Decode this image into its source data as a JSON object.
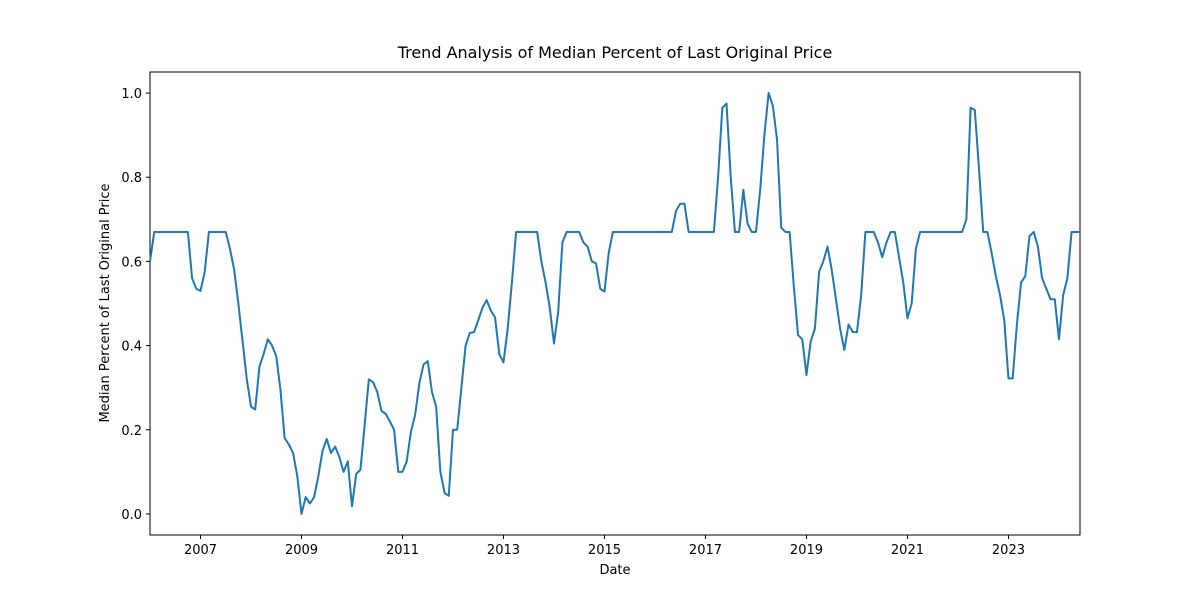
{
  "chart_data": {
    "type": "line",
    "title": "Trend Analysis of Median Percent of Last Original Price",
    "x_label": "Date",
    "y_label": "Median Percent of Last Original Price",
    "x": [
      "2006-01",
      "2006-02",
      "2006-03",
      "2006-04",
      "2006-05",
      "2006-06",
      "2006-07",
      "2006-08",
      "2006-09",
      "2006-10",
      "2006-11",
      "2006-12",
      "2007-01",
      "2007-02",
      "2007-03",
      "2007-04",
      "2007-05",
      "2007-06",
      "2007-07",
      "2007-08",
      "2007-09",
      "2007-10",
      "2007-11",
      "2007-12",
      "2008-01",
      "2008-02",
      "2008-03",
      "2008-04",
      "2008-05",
      "2008-06",
      "2008-07",
      "2008-08",
      "2008-09",
      "2008-10",
      "2008-11",
      "2008-12",
      "2009-01",
      "2009-02",
      "2009-03",
      "2009-04",
      "2009-05",
      "2009-06",
      "2009-07",
      "2009-08",
      "2009-09",
      "2009-10",
      "2009-11",
      "2009-12",
      "2010-01",
      "2010-02",
      "2010-03",
      "2010-04",
      "2010-05",
      "2010-06",
      "2010-07",
      "2010-08",
      "2010-09",
      "2010-10",
      "2010-11",
      "2010-12",
      "2011-01",
      "2011-02",
      "2011-03",
      "2011-04",
      "2011-05",
      "2011-06",
      "2011-07",
      "2011-08",
      "2011-09",
      "2011-10",
      "2011-11",
      "2011-12",
      "2012-01",
      "2012-02",
      "2012-03",
      "2012-04",
      "2012-05",
      "2012-06",
      "2012-07",
      "2012-08",
      "2012-09",
      "2012-10",
      "2012-11",
      "2012-12",
      "2013-01",
      "2013-02",
      "2013-03",
      "2013-04",
      "2013-05",
      "2013-06",
      "2013-07",
      "2013-08",
      "2013-09",
      "2013-10",
      "2013-11",
      "2013-12",
      "2014-01",
      "2014-02",
      "2014-03",
      "2014-04",
      "2014-05",
      "2014-06",
      "2014-07",
      "2014-08",
      "2014-09",
      "2014-10",
      "2014-11",
      "2014-12",
      "2015-01",
      "2015-02",
      "2015-03",
      "2015-04",
      "2015-05",
      "2015-06",
      "2015-07",
      "2015-08",
      "2015-09",
      "2015-10",
      "2015-11",
      "2015-12",
      "2016-01",
      "2016-02",
      "2016-03",
      "2016-04",
      "2016-05",
      "2016-06",
      "2016-07",
      "2016-08",
      "2016-09",
      "2016-10",
      "2016-11",
      "2016-12",
      "2017-01",
      "2017-02",
      "2017-03",
      "2017-04",
      "2017-05",
      "2017-06",
      "2017-07",
      "2017-08",
      "2017-09",
      "2017-10",
      "2017-11",
      "2017-12",
      "2018-01",
      "2018-02",
      "2018-03",
      "2018-04",
      "2018-05",
      "2018-06",
      "2018-07",
      "2018-08",
      "2018-09",
      "2018-10",
      "2018-11",
      "2018-12",
      "2019-01",
      "2019-02",
      "2019-03",
      "2019-04",
      "2019-05",
      "2019-06",
      "2019-07",
      "2019-08",
      "2019-09",
      "2019-10",
      "2019-11",
      "2019-12",
      "2020-01",
      "2020-02",
      "2020-03",
      "2020-04",
      "2020-05",
      "2020-06",
      "2020-07",
      "2020-08",
      "2020-09",
      "2020-10",
      "2020-11",
      "2020-12",
      "2021-01",
      "2021-02",
      "2021-03",
      "2021-04",
      "2021-05",
      "2021-06",
      "2021-07",
      "2021-08",
      "2021-09",
      "2021-10",
      "2021-11",
      "2021-12",
      "2022-01",
      "2022-02",
      "2022-03",
      "2022-04",
      "2022-05",
      "2022-06",
      "2022-07",
      "2022-08",
      "2022-09",
      "2022-10",
      "2022-11",
      "2022-12",
      "2023-01",
      "2023-02",
      "2023-03",
      "2023-04",
      "2023-05",
      "2023-06",
      "2023-07",
      "2023-08",
      "2023-09",
      "2023-10",
      "2023-11",
      "2023-12",
      "2024-01",
      "2024-02",
      "2024-03",
      "2024-04",
      "2024-05",
      "2024-06"
    ],
    "series": [
      {
        "color": "#1f77b4",
        "values": [
          0.6,
          0.67,
          0.67,
          0.67,
          0.67,
          0.67,
          0.67,
          0.67,
          0.67,
          0.67,
          0.56,
          0.535,
          0.53,
          0.575,
          0.67,
          0.67,
          0.67,
          0.67,
          0.67,
          0.63,
          0.58,
          0.5,
          0.41,
          0.32,
          0.255,
          0.248,
          0.35,
          0.38,
          0.415,
          0.4,
          0.375,
          0.295,
          0.18,
          0.165,
          0.145,
          0.09,
          0.0,
          0.04,
          0.025,
          0.04,
          0.09,
          0.15,
          0.178,
          0.145,
          0.16,
          0.135,
          0.1,
          0.125,
          0.018,
          0.095,
          0.105,
          0.21,
          0.32,
          0.313,
          0.29,
          0.245,
          0.238,
          0.22,
          0.2,
          0.1,
          0.1,
          0.125,
          0.195,
          0.235,
          0.31,
          0.355,
          0.363,
          0.29,
          0.255,
          0.1,
          0.05,
          0.043,
          0.2,
          0.2,
          0.3,
          0.4,
          0.43,
          0.432,
          0.46,
          0.49,
          0.508,
          0.483,
          0.467,
          0.38,
          0.36,
          0.44,
          0.55,
          0.67,
          0.67,
          0.67,
          0.67,
          0.67,
          0.67,
          0.6,
          0.55,
          0.49,
          0.405,
          0.48,
          0.645,
          0.67,
          0.67,
          0.67,
          0.67,
          0.645,
          0.635,
          0.6,
          0.595,
          0.535,
          0.528,
          0.62,
          0.67,
          0.67,
          0.67,
          0.67,
          0.67,
          0.67,
          0.67,
          0.67,
          0.67,
          0.67,
          0.67,
          0.67,
          0.67,
          0.67,
          0.67,
          0.72,
          0.737,
          0.737,
          0.67,
          0.67,
          0.67,
          0.67,
          0.67,
          0.67,
          0.67,
          0.8,
          0.965,
          0.975,
          0.8,
          0.67,
          0.67,
          0.77,
          0.69,
          0.67,
          0.67,
          0.77,
          0.9,
          1.0,
          0.97,
          0.89,
          0.68,
          0.67,
          0.67,
          0.54,
          0.425,
          0.415,
          0.33,
          0.41,
          0.44,
          0.575,
          0.6,
          0.635,
          0.58,
          0.51,
          0.44,
          0.39,
          0.45,
          0.432,
          0.432,
          0.52,
          0.67,
          0.67,
          0.67,
          0.645,
          0.61,
          0.645,
          0.67,
          0.67,
          0.61,
          0.55,
          0.465,
          0.5,
          0.63,
          0.67,
          0.67,
          0.67,
          0.67,
          0.67,
          0.67,
          0.67,
          0.67,
          0.67,
          0.67,
          0.67,
          0.7,
          0.965,
          0.96,
          0.82,
          0.67,
          0.67,
          0.62,
          0.565,
          0.52,
          0.46,
          0.322,
          0.322,
          0.45,
          0.55,
          0.565,
          0.66,
          0.67,
          0.635,
          0.56,
          0.535,
          0.51,
          0.51,
          0.415,
          0.52,
          0.56,
          0.67,
          0.67,
          0.67
        ]
      }
    ],
    "xlim": [
      "2006-01",
      "2024-06"
    ],
    "xticks": [
      2007,
      2009,
      2011,
      2013,
      2015,
      2017,
      2019,
      2021,
      2023
    ],
    "ylim": [
      -0.05,
      1.05
    ],
    "yticks": [
      {
        "value": 0,
        "label": "0.0"
      },
      0.2,
      0.4,
      0.6,
      0.8,
      {
        "value": 1,
        "label": "1.0"
      }
    ]
  }
}
